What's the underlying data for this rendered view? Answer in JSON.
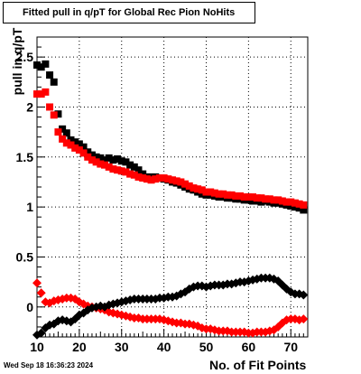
{
  "title": "Fitted pull in q/pT for Global Rec Pion NoHits",
  "timestamp": "Wed Sep 18 16:36:23 2024",
  "chart_data": {
    "type": "scatter",
    "title": "Fitted pull in q/pT for Global Rec Pion NoHits",
    "xlabel": "No. of Fit Points",
    "ylabel": "pull in q/pT",
    "xlim": [
      10,
      74
    ],
    "ylim": [
      -0.3,
      2.7
    ],
    "grid": true,
    "xticks": [
      10,
      20,
      30,
      40,
      50,
      60,
      70
    ],
    "yticks": [
      0,
      0.5,
      1,
      1.5,
      2,
      2.5
    ],
    "series": [
      {
        "marker": "square",
        "color": "#000000",
        "points": [
          [
            10,
            2.42
          ],
          [
            11,
            2.4
          ],
          [
            12,
            2.43
          ],
          [
            13,
            2.32
          ],
          [
            14,
            2.25
          ],
          [
            15,
            1.93
          ],
          [
            16,
            1.78
          ],
          [
            17,
            1.74
          ],
          [
            18,
            1.67
          ],
          [
            19,
            1.65
          ],
          [
            20,
            1.63
          ],
          [
            21,
            1.6
          ],
          [
            22,
            1.55
          ],
          [
            23,
            1.52
          ],
          [
            24,
            1.5
          ],
          [
            25,
            1.49
          ],
          [
            26,
            1.47
          ],
          [
            27,
            1.49
          ],
          [
            28,
            1.47
          ],
          [
            29,
            1.48
          ],
          [
            30,
            1.46
          ],
          [
            31,
            1.45
          ],
          [
            32,
            1.42
          ],
          [
            33,
            1.4
          ],
          [
            34,
            1.37
          ],
          [
            35,
            1.33
          ],
          [
            36,
            1.3
          ],
          [
            37,
            1.3
          ],
          [
            38,
            1.3
          ],
          [
            39,
            1.29
          ],
          [
            40,
            1.28
          ],
          [
            41,
            1.27
          ],
          [
            42,
            1.25
          ],
          [
            43,
            1.24
          ],
          [
            44,
            1.22
          ],
          [
            45,
            1.2
          ],
          [
            46,
            1.18
          ],
          [
            47,
            1.17
          ],
          [
            48,
            1.15
          ],
          [
            49,
            1.13
          ],
          [
            50,
            1.12
          ],
          [
            51,
            1.12
          ],
          [
            52,
            1.11
          ],
          [
            53,
            1.1
          ],
          [
            54,
            1.1
          ],
          [
            55,
            1.09
          ],
          [
            56,
            1.09
          ],
          [
            57,
            1.08
          ],
          [
            58,
            1.08
          ],
          [
            59,
            1.07
          ],
          [
            60,
            1.07
          ],
          [
            61,
            1.06
          ],
          [
            62,
            1.06
          ],
          [
            63,
            1.05
          ],
          [
            64,
            1.06
          ],
          [
            65,
            1.05
          ],
          [
            66,
            1.04
          ],
          [
            67,
            1.04
          ],
          [
            68,
            1.03
          ],
          [
            69,
            1.02
          ],
          [
            70,
            1.01
          ],
          [
            71,
            1.0
          ],
          [
            72,
            0.99
          ],
          [
            73,
            0.97
          ]
        ]
      },
      {
        "marker": "square",
        "color": "#ff0000",
        "points": [
          [
            10,
            2.13
          ],
          [
            11,
            2.13
          ],
          [
            12,
            2.15
          ],
          [
            13,
            2.0
          ],
          [
            14,
            1.92
          ],
          [
            15,
            1.75
          ],
          [
            16,
            1.68
          ],
          [
            17,
            1.64
          ],
          [
            18,
            1.62
          ],
          [
            19,
            1.59
          ],
          [
            20,
            1.57
          ],
          [
            21,
            1.54
          ],
          [
            22,
            1.5
          ],
          [
            23,
            1.47
          ],
          [
            24,
            1.45
          ],
          [
            25,
            1.43
          ],
          [
            26,
            1.42
          ],
          [
            27,
            1.4
          ],
          [
            28,
            1.38
          ],
          [
            29,
            1.37
          ],
          [
            30,
            1.36
          ],
          [
            31,
            1.35
          ],
          [
            32,
            1.33
          ],
          [
            33,
            1.32
          ],
          [
            34,
            1.3
          ],
          [
            35,
            1.29
          ],
          [
            36,
            1.28
          ],
          [
            37,
            1.27
          ],
          [
            38,
            1.28
          ],
          [
            39,
            1.29
          ],
          [
            40,
            1.29
          ],
          [
            41,
            1.28
          ],
          [
            42,
            1.27
          ],
          [
            43,
            1.26
          ],
          [
            44,
            1.25
          ],
          [
            45,
            1.23
          ],
          [
            46,
            1.21
          ],
          [
            47,
            1.19
          ],
          [
            48,
            1.18
          ],
          [
            49,
            1.17
          ],
          [
            50,
            1.15
          ],
          [
            51,
            1.15
          ],
          [
            52,
            1.14
          ],
          [
            53,
            1.13
          ],
          [
            54,
            1.13
          ],
          [
            55,
            1.12
          ],
          [
            56,
            1.12
          ],
          [
            57,
            1.11
          ],
          [
            58,
            1.11
          ],
          [
            59,
            1.1
          ],
          [
            60,
            1.1
          ],
          [
            61,
            1.1
          ],
          [
            62,
            1.09
          ],
          [
            63,
            1.09
          ],
          [
            64,
            1.08
          ],
          [
            65,
            1.08
          ],
          [
            66,
            1.07
          ],
          [
            67,
            1.07
          ],
          [
            68,
            1.06
          ],
          [
            69,
            1.05
          ],
          [
            70,
            1.05
          ],
          [
            71,
            1.04
          ],
          [
            72,
            1.03
          ],
          [
            73,
            1.02
          ]
        ]
      },
      {
        "marker": "diamond",
        "color": "#ff0000",
        "points": [
          [
            10,
            0.24
          ],
          [
            11,
            0.14
          ],
          [
            12,
            0.05
          ],
          [
            13,
            0.04
          ],
          [
            14,
            0.06
          ],
          [
            15,
            0.07
          ],
          [
            16,
            0.08
          ],
          [
            17,
            0.09
          ],
          [
            18,
            0.09
          ],
          [
            19,
            0.08
          ],
          [
            20,
            0.05
          ],
          [
            21,
            0.03
          ],
          [
            22,
            0.01
          ],
          [
            23,
            0.0
          ],
          [
            24,
            -0.01
          ],
          [
            25,
            -0.02
          ],
          [
            26,
            -0.03
          ],
          [
            27,
            -0.05
          ],
          [
            28,
            -0.06
          ],
          [
            29,
            -0.07
          ],
          [
            30,
            -0.08
          ],
          [
            31,
            -0.09
          ],
          [
            32,
            -0.1
          ],
          [
            33,
            -0.11
          ],
          [
            34,
            -0.11
          ],
          [
            35,
            -0.12
          ],
          [
            36,
            -0.12
          ],
          [
            37,
            -0.12
          ],
          [
            38,
            -0.12
          ],
          [
            39,
            -0.12
          ],
          [
            40,
            -0.13
          ],
          [
            41,
            -0.14
          ],
          [
            42,
            -0.15
          ],
          [
            43,
            -0.16
          ],
          [
            44,
            -0.16
          ],
          [
            45,
            -0.17
          ],
          [
            46,
            -0.17
          ],
          [
            47,
            -0.18
          ],
          [
            48,
            -0.19
          ],
          [
            49,
            -0.21
          ],
          [
            50,
            -0.22
          ],
          [
            51,
            -0.22
          ],
          [
            52,
            -0.23
          ],
          [
            53,
            -0.24
          ],
          [
            54,
            -0.24
          ],
          [
            55,
            -0.24
          ],
          [
            56,
            -0.25
          ],
          [
            57,
            -0.25
          ],
          [
            58,
            -0.25
          ],
          [
            59,
            -0.25
          ],
          [
            60,
            -0.26
          ],
          [
            61,
            -0.26
          ],
          [
            62,
            -0.25
          ],
          [
            63,
            -0.25
          ],
          [
            64,
            -0.25
          ],
          [
            65,
            -0.24
          ],
          [
            66,
            -0.23
          ],
          [
            67,
            -0.2
          ],
          [
            68,
            -0.16
          ],
          [
            69,
            -0.13
          ],
          [
            70,
            -0.12
          ],
          [
            71,
            -0.12
          ],
          [
            72,
            -0.13
          ],
          [
            73,
            -0.12
          ]
        ]
      },
      {
        "marker": "diamond",
        "color": "#000000",
        "points": [
          [
            10,
            -0.28
          ],
          [
            11,
            -0.26
          ],
          [
            12,
            -0.21
          ],
          [
            13,
            -0.18
          ],
          [
            14,
            -0.17
          ],
          [
            15,
            -0.14
          ],
          [
            16,
            -0.13
          ],
          [
            17,
            -0.14
          ],
          [
            18,
            -0.15
          ],
          [
            19,
            -0.12
          ],
          [
            20,
            -0.08
          ],
          [
            21,
            -0.06
          ],
          [
            22,
            -0.03
          ],
          [
            23,
            -0.01
          ],
          [
            24,
            0.0
          ],
          [
            25,
            0.01
          ],
          [
            26,
            0.0
          ],
          [
            27,
            0.02
          ],
          [
            28,
            0.03
          ],
          [
            29,
            0.04
          ],
          [
            30,
            0.05
          ],
          [
            31,
            0.06
          ],
          [
            32,
            0.07
          ],
          [
            33,
            0.08
          ],
          [
            34,
            0.08
          ],
          [
            35,
            0.08
          ],
          [
            36,
            0.08
          ],
          [
            37,
            0.08
          ],
          [
            38,
            0.08
          ],
          [
            39,
            0.09
          ],
          [
            40,
            0.09
          ],
          [
            41,
            0.1
          ],
          [
            42,
            0.1
          ],
          [
            43,
            0.11
          ],
          [
            44,
            0.13
          ],
          [
            45,
            0.15
          ],
          [
            46,
            0.18
          ],
          [
            47,
            0.2
          ],
          [
            48,
            0.21
          ],
          [
            49,
            0.21
          ],
          [
            50,
            0.2
          ],
          [
            51,
            0.21
          ],
          [
            52,
            0.22
          ],
          [
            53,
            0.22
          ],
          [
            54,
            0.22
          ],
          [
            55,
            0.23
          ],
          [
            56,
            0.23
          ],
          [
            57,
            0.24
          ],
          [
            58,
            0.25
          ],
          [
            59,
            0.25
          ],
          [
            60,
            0.26
          ],
          [
            61,
            0.27
          ],
          [
            62,
            0.28
          ],
          [
            63,
            0.29
          ],
          [
            64,
            0.29
          ],
          [
            65,
            0.29
          ],
          [
            66,
            0.28
          ],
          [
            67,
            0.26
          ],
          [
            68,
            0.22
          ],
          [
            69,
            0.18
          ],
          [
            70,
            0.15
          ],
          [
            71,
            0.13
          ],
          [
            72,
            0.13
          ],
          [
            73,
            0.12
          ]
        ]
      }
    ]
  }
}
